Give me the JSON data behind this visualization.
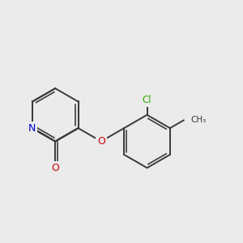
{
  "background_color": "#ebebeb",
  "bond_color": "#3a3a3a",
  "bond_width": 1.4,
  "atom_colors": {
    "N": "#0000cc",
    "O": "#cc0000",
    "Cl": "#33aa00",
    "C": "#3a3a3a"
  },
  "figsize": [
    3.0,
    3.0
  ],
  "dpi": 100,
  "xlim": [
    -0.5,
    8.5
  ],
  "ylim": [
    1.0,
    7.5
  ]
}
